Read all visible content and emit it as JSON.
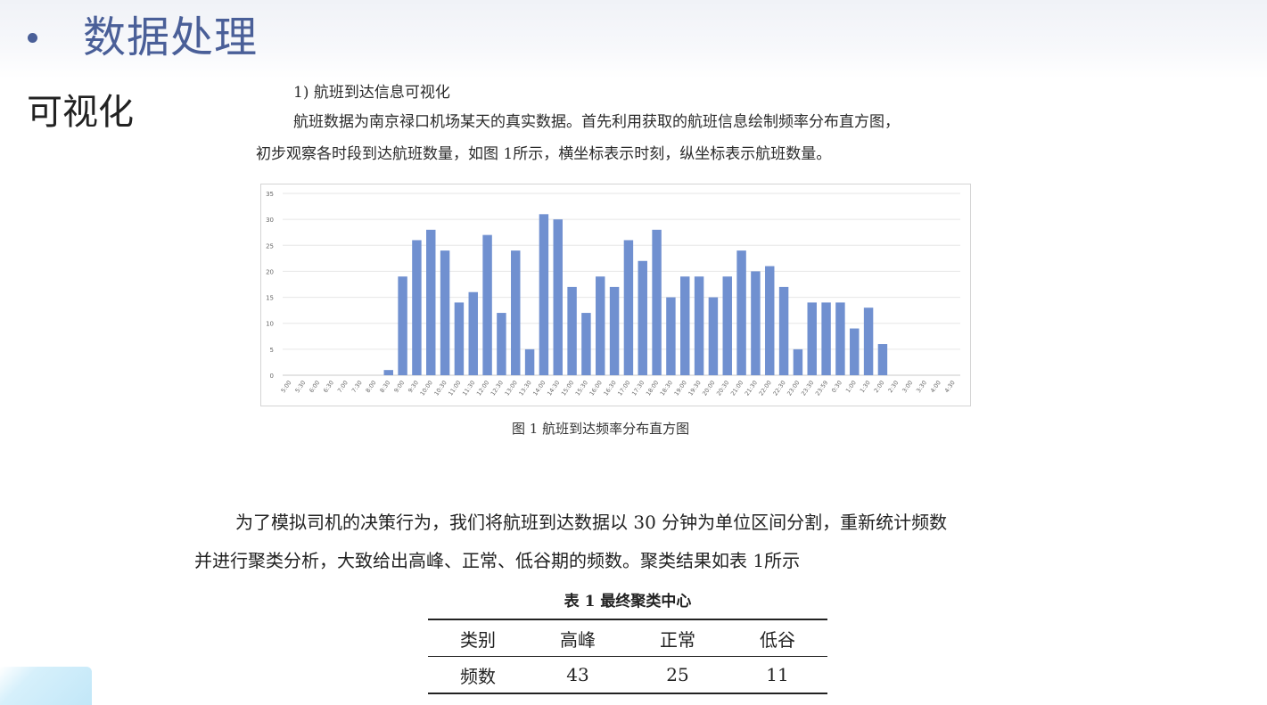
{
  "slide": {
    "title": "数据处理",
    "side_label": "可视化"
  },
  "doc": {
    "section_heading": "1) 航班到达信息可视化",
    "intro_line1": "航班数据为南京禄口机场某天的真实数据。首先利用获取的航班信息绘制频率分布直方图，",
    "intro_line2": "初步观察各时段到达航班数量，如图 1所示，横坐标表示时刻，纵坐标表示航班数量。",
    "figure_caption": "图 1   航班到达频率分布直方图",
    "body_line1": "为了模拟司机的决策行为，我们将航班到达数据以 30 分钟为单位区间分割，重新统计频数",
    "body_line2": "并进行聚类分析，大致给出高峰、正常、低谷期的频数。聚类结果如表 1所示",
    "table_caption": "表 1    最终聚类中心"
  },
  "table": {
    "headers": [
      "类别",
      "高峰",
      "正常",
      "低谷"
    ],
    "row": [
      "频数",
      "43",
      "25",
      "11"
    ]
  },
  "chart_data": {
    "type": "bar",
    "title": "",
    "xlabel": "",
    "ylabel": "",
    "ylim": [
      0,
      35
    ],
    "yticks": [
      "0",
      "5",
      "10",
      "15",
      "20",
      "25",
      "30",
      "35"
    ],
    "grid": true,
    "bar_color": "#7090d0",
    "categories": [
      "5:00",
      "5:30",
      "6:00",
      "6:30",
      "7:00",
      "7:30",
      "8:00",
      "8:30",
      "9:00",
      "9:30",
      "10:00",
      "10:30",
      "11:00",
      "11:30",
      "12:00",
      "12:30",
      "13:00",
      "13:30",
      "14:00",
      "14:30",
      "15:00",
      "15:30",
      "16:00",
      "16:30",
      "17:00",
      "17:30",
      "18:00",
      "18:30",
      "19:00",
      "19:30",
      "20:00",
      "20:30",
      "21:00",
      "21:30",
      "22:00",
      "22:30",
      "23:00",
      "23:30",
      "23:59",
      "0:30",
      "1:00",
      "1:30",
      "2:00",
      "2:30",
      "3:00",
      "3:30",
      "4:00",
      "4:30"
    ],
    "values": [
      0,
      0,
      0,
      0,
      0,
      0,
      0,
      1,
      19,
      26,
      28,
      24,
      14,
      16,
      27,
      12,
      24,
      5,
      31,
      30,
      17,
      12,
      19,
      17,
      26,
      22,
      28,
      15,
      19,
      19,
      15,
      19,
      24,
      20,
      21,
      17,
      5,
      14,
      14,
      14,
      9,
      13,
      6,
      0,
      0,
      0,
      0,
      0
    ]
  }
}
